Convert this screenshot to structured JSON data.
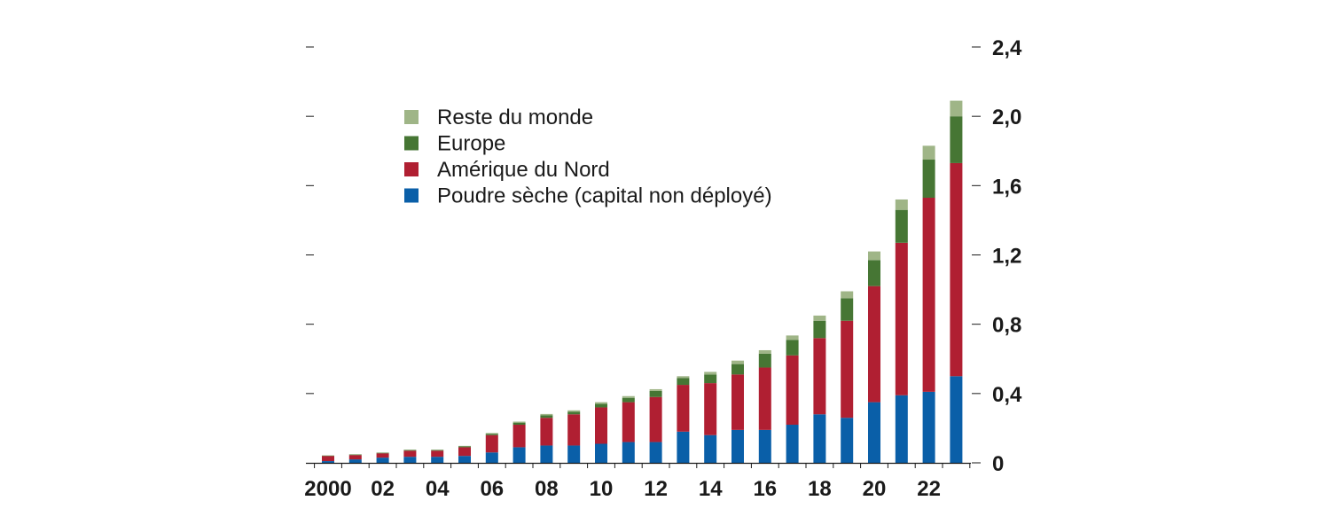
{
  "chart_data": {
    "type": "bar",
    "stacked": true,
    "x": [
      "2000",
      "2001",
      "2002",
      "2003",
      "2004",
      "2005",
      "2006",
      "2007",
      "2008",
      "2009",
      "2010",
      "2011",
      "2012",
      "2013",
      "2014",
      "2015",
      "2016",
      "2017",
      "2018",
      "2019",
      "2020",
      "2021",
      "2022",
      "2023"
    ],
    "x_tick_labels": [
      {
        "x": "2000",
        "label": "2000"
      },
      {
        "x": "2002",
        "label": "02"
      },
      {
        "x": "2004",
        "label": "04"
      },
      {
        "x": "2006",
        "label": "06"
      },
      {
        "x": "2008",
        "label": "08"
      },
      {
        "x": "2010",
        "label": "10"
      },
      {
        "x": "2012",
        "label": "12"
      },
      {
        "x": "2014",
        "label": "14"
      },
      {
        "x": "2016",
        "label": "16"
      },
      {
        "x": "2018",
        "label": "18"
      },
      {
        "x": "2020",
        "label": "20"
      },
      {
        "x": "2022",
        "label": "22"
      }
    ],
    "y_ticks": [
      {
        "value": 0,
        "label": "0"
      },
      {
        "value": 0.4,
        "label": "0,4"
      },
      {
        "value": 0.8,
        "label": "0,8"
      },
      {
        "value": 1.2,
        "label": "1,2"
      },
      {
        "value": 1.6,
        "label": "1,6"
      },
      {
        "value": 2.0,
        "label": "2,0"
      },
      {
        "value": 2.4,
        "label": "2,4"
      }
    ],
    "ylim": [
      0,
      2.4
    ],
    "y_axis_side": "right",
    "grid": false,
    "legend_position": "top-left",
    "series": [
      {
        "name": "Poudre sèche (capital non déployé)",
        "color": "#0a5fa8",
        "values": [
          0.01,
          0.02,
          0.03,
          0.035,
          0.035,
          0.04,
          0.06,
          0.09,
          0.1,
          0.1,
          0.11,
          0.12,
          0.12,
          0.18,
          0.16,
          0.19,
          0.19,
          0.22,
          0.28,
          0.26,
          0.35,
          0.39,
          0.41,
          0.5
        ]
      },
      {
        "name": "Amérique du Nord",
        "color": "#b01f32",
        "values": [
          0.03,
          0.025,
          0.025,
          0.035,
          0.035,
          0.05,
          0.1,
          0.13,
          0.16,
          0.18,
          0.21,
          0.23,
          0.26,
          0.27,
          0.3,
          0.32,
          0.36,
          0.4,
          0.44,
          0.56,
          0.67,
          0.88,
          1.12,
          1.23
        ]
      },
      {
        "name": "Europe",
        "color": "#467634",
        "values": [
          0.002,
          0.003,
          0.003,
          0.004,
          0.004,
          0.005,
          0.008,
          0.012,
          0.015,
          0.015,
          0.02,
          0.025,
          0.035,
          0.04,
          0.05,
          0.06,
          0.08,
          0.09,
          0.1,
          0.13,
          0.15,
          0.19,
          0.22,
          0.27
        ]
      },
      {
        "name": "Reste du monde",
        "color": "#9fb587",
        "values": [
          0.001,
          0.002,
          0.002,
          0.002,
          0.002,
          0.003,
          0.004,
          0.006,
          0.007,
          0.008,
          0.01,
          0.01,
          0.01,
          0.01,
          0.015,
          0.02,
          0.02,
          0.025,
          0.03,
          0.04,
          0.05,
          0.06,
          0.08,
          0.09
        ]
      }
    ],
    "legend_order": [
      "Reste du monde",
      "Europe",
      "Amérique du Nord",
      "Poudre sèche (capital non déployé)"
    ]
  }
}
